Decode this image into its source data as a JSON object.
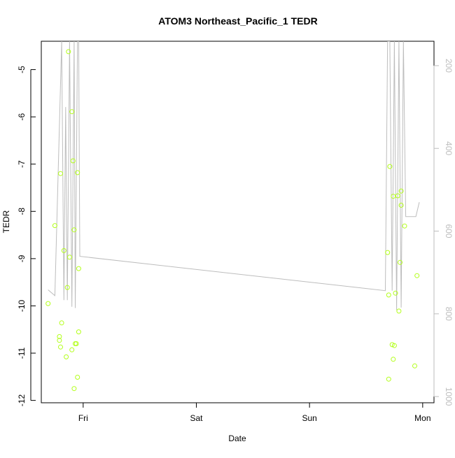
{
  "chart_data": {
    "type": "scatter",
    "title": "ATOM3 Northeast_Pacific_1 TEDR",
    "xlabel": "Date",
    "ylabel": "TEDR",
    "x_ticks": [
      "Fri",
      "Sat",
      "Sun",
      "Mon"
    ],
    "xlim": [
      -0.37,
      3.1
    ],
    "ylim": [
      -12.05,
      -4.4
    ],
    "y_ticks": [
      -5,
      -6,
      -7,
      -8,
      -9,
      -10,
      -11,
      -12
    ],
    "y2lim": [
      1015,
      141
    ],
    "y2_ticks": [
      200,
      400,
      600,
      800,
      1000
    ],
    "grid": false,
    "series": [
      {
        "type": "scatter",
        "color": "#b3ff1a",
        "points": [
          {
            "x": -0.31,
            "y": -9.95
          },
          {
            "x": -0.25,
            "y": -8.3
          },
          {
            "x": -0.21,
            "y": -10.73
          },
          {
            "x": -0.21,
            "y": -10.65
          },
          {
            "x": -0.2,
            "y": -7.2
          },
          {
            "x": -0.2,
            "y": -10.87
          },
          {
            "x": -0.19,
            "y": -10.36
          },
          {
            "x": -0.17,
            "y": -8.83
          },
          {
            "x": -0.15,
            "y": -11.08
          },
          {
            "x": -0.14,
            "y": -9.61
          },
          {
            "x": -0.13,
            "y": -4.62
          },
          {
            "x": -0.12,
            "y": -8.97
          },
          {
            "x": -0.1,
            "y": -5.89
          },
          {
            "x": -0.1,
            "y": -10.93
          },
          {
            "x": -0.09,
            "y": -6.93
          },
          {
            "x": -0.08,
            "y": -8.39
          },
          {
            "x": -0.08,
            "y": -11.75
          },
          {
            "x": -0.07,
            "y": -10.8
          },
          {
            "x": -0.06,
            "y": -10.8
          },
          {
            "x": -0.05,
            "y": -11.51
          },
          {
            "x": -0.05,
            "y": -7.18
          },
          {
            "x": -0.04,
            "y": -9.21
          },
          {
            "x": -0.04,
            "y": -10.55
          },
          {
            "x": 2.69,
            "y": -8.87
          },
          {
            "x": 2.7,
            "y": -9.77
          },
          {
            "x": 2.7,
            "y": -11.55
          },
          {
            "x": 2.71,
            "y": -7.05
          },
          {
            "x": 2.73,
            "y": -10.82
          },
          {
            "x": 2.74,
            "y": -11.13
          },
          {
            "x": 2.74,
            "y": -7.68
          },
          {
            "x": 2.75,
            "y": -10.84
          },
          {
            "x": 2.76,
            "y": -9.73
          },
          {
            "x": 2.78,
            "y": -7.67
          },
          {
            "x": 2.79,
            "y": -10.11
          },
          {
            "x": 2.8,
            "y": -9.08
          },
          {
            "x": 2.81,
            "y": -7.87
          },
          {
            "x": 2.81,
            "y": -7.57
          },
          {
            "x": 2.84,
            "y": -8.31
          },
          {
            "x": 2.93,
            "y": -11.27
          },
          {
            "x": 2.95,
            "y": -9.36
          }
        ]
      },
      {
        "type": "line",
        "color": "#bdbdbd",
        "axis": "right",
        "points": [
          {
            "x": -0.31,
            "y": 742
          },
          {
            "x": -0.25,
            "y": 756
          },
          {
            "x": -0.19,
            "y": 141
          },
          {
            "x": -0.17,
            "y": 767
          },
          {
            "x": -0.155,
            "y": 300
          },
          {
            "x": -0.14,
            "y": 767
          },
          {
            "x": -0.12,
            "y": 141
          },
          {
            "x": -0.1,
            "y": 783
          },
          {
            "x": -0.08,
            "y": 141
          },
          {
            "x": -0.07,
            "y": 786
          },
          {
            "x": -0.05,
            "y": 141
          },
          {
            "x": -0.04,
            "y": 141
          },
          {
            "x": -0.03,
            "y": 661
          },
          {
            "x": 2.67,
            "y": 744
          },
          {
            "x": 2.69,
            "y": 141
          },
          {
            "x": 2.71,
            "y": 141
          },
          {
            "x": 2.73,
            "y": 744
          },
          {
            "x": 2.75,
            "y": 141
          },
          {
            "x": 2.77,
            "y": 791
          },
          {
            "x": 2.79,
            "y": 141
          },
          {
            "x": 2.81,
            "y": 785
          },
          {
            "x": 2.83,
            "y": 141
          },
          {
            "x": 2.85,
            "y": 565
          },
          {
            "x": 2.94,
            "y": 565
          },
          {
            "x": 2.97,
            "y": 530
          }
        ]
      }
    ]
  }
}
